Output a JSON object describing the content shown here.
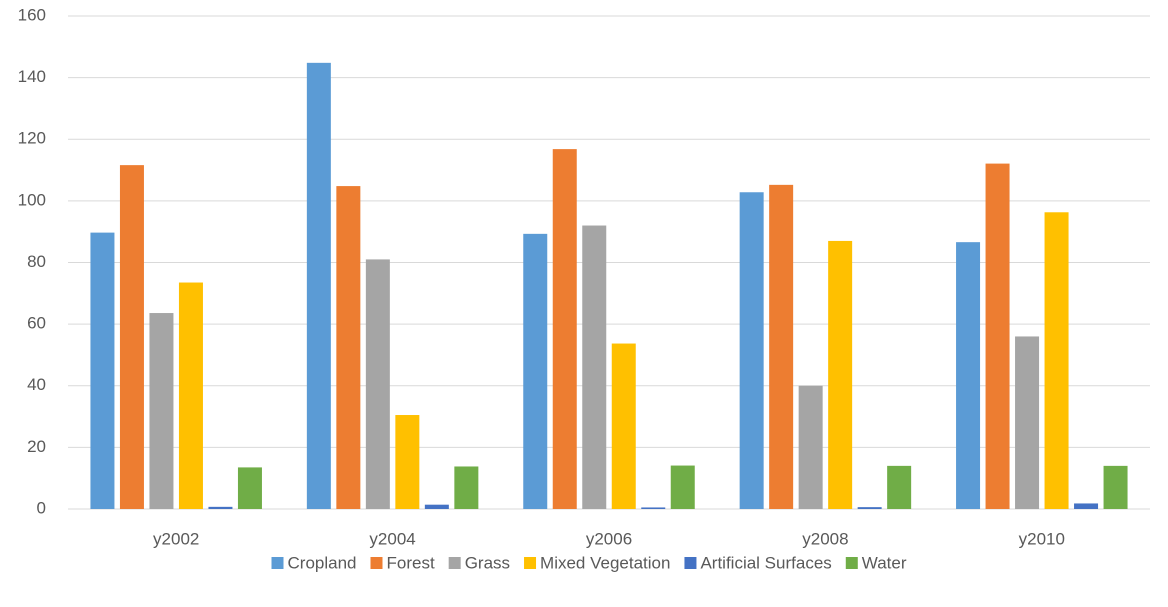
{
  "chart_data": {
    "type": "bar",
    "categories": [
      "y2002",
      "y2004",
      "y2006",
      "y2008",
      "y2010"
    ],
    "series": [
      {
        "name": "Cropland",
        "color": "#5b9bd5",
        "values": [
          89.7,
          144.8,
          89.3,
          102.8,
          86.6
        ]
      },
      {
        "name": "Forest",
        "color": "#ed7d31",
        "values": [
          111.6,
          104.8,
          116.8,
          105.2,
          112.1
        ]
      },
      {
        "name": "Grass",
        "color": "#a5a5a5",
        "values": [
          63.6,
          81,
          92,
          40,
          56
        ]
      },
      {
        "name": "Mixed Vegetation",
        "color": "#ffc000",
        "values": [
          73.5,
          30.5,
          53.7,
          87,
          96.3
        ]
      },
      {
        "name": "Artificial Surfaces",
        "color": "#4472c4",
        "values": [
          0.7,
          1.4,
          0.5,
          0.6,
          1.8
        ]
      },
      {
        "name": "Water",
        "color": "#70ad47",
        "values": [
          13.5,
          13.8,
          14.1,
          14,
          14
        ]
      }
    ],
    "ylim": [
      0,
      160
    ],
    "yticks": [
      0,
      20,
      40,
      60,
      80,
      100,
      120,
      140,
      160
    ],
    "grid": true,
    "legend": "bottom"
  }
}
